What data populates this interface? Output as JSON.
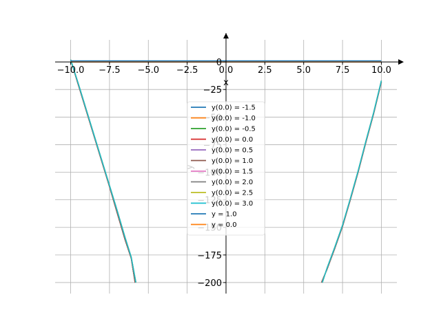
{
  "chart_data": {
    "type": "line",
    "title": "",
    "xlabel": "x",
    "ylabel": "y",
    "xlim": [
      -11,
      11
    ],
    "ylim": [
      -210,
      20
    ],
    "x_ticks": [
      -10.0,
      -7.5,
      -5.0,
      -2.5,
      0.0,
      2.5,
      5.0,
      7.5,
      10.0
    ],
    "x_tick_labels": [
      "−10.0",
      "−7.5",
      "−5.0",
      "−2.5",
      "0.0",
      "2.5",
      "5.0",
      "7.5",
      "10.0"
    ],
    "y_ticks": [
      0,
      -25,
      -50,
      -75,
      -100,
      -125,
      -150,
      -175,
      -200
    ],
    "y_tick_labels": [
      "0",
      "−25",
      "−50",
      "−75",
      "−100",
      "−125",
      "−150",
      "−175",
      "−200"
    ],
    "grid": true,
    "legend_placement": "center",
    "series": [
      {
        "name": "y(0.0) = -1.5",
        "color": "#1f77b4",
        "left": [
          [
            -10.0,
            2
          ],
          [
            -9.5,
            -21
          ],
          [
            -9.0,
            -44
          ],
          [
            -8.5,
            -67
          ],
          [
            -8.0,
            -90
          ],
          [
            -7.5,
            -113
          ],
          [
            -7.0,
            -137
          ],
          [
            -6.5,
            -161
          ],
          [
            -6.1,
            -178
          ],
          [
            -5.85,
            -200
          ]
        ],
        "right": [
          [
            6.15,
            -200
          ],
          [
            6.5,
            -188
          ],
          [
            7.0,
            -169
          ],
          [
            7.5,
            -149
          ],
          [
            8.0,
            -125
          ],
          [
            8.5,
            -100
          ],
          [
            9.0,
            -73
          ],
          [
            9.5,
            -47
          ],
          [
            10.0,
            -18
          ]
        ]
      },
      {
        "name": "y(0.0) = -1.0",
        "color": "#ff7f0e",
        "left": [
          [
            -10.0,
            2
          ],
          [
            -9.5,
            -21
          ],
          [
            -9.0,
            -44
          ],
          [
            -8.5,
            -67
          ],
          [
            -8.0,
            -90
          ],
          [
            -7.5,
            -113
          ],
          [
            -7.0,
            -137
          ],
          [
            -6.5,
            -161
          ],
          [
            -6.1,
            -178
          ],
          [
            -5.85,
            -200
          ]
        ],
        "right": [
          [
            6.15,
            -200
          ],
          [
            6.5,
            -188
          ],
          [
            7.0,
            -169
          ],
          [
            7.5,
            -149
          ],
          [
            8.0,
            -125
          ],
          [
            8.5,
            -100
          ],
          [
            9.0,
            -73
          ],
          [
            9.5,
            -47
          ],
          [
            10.0,
            -18
          ]
        ]
      },
      {
        "name": "y(0.0) = -0.5",
        "color": "#2ca02c",
        "left": [
          [
            -10.0,
            2
          ],
          [
            -9.5,
            -21
          ],
          [
            -9.0,
            -44
          ],
          [
            -8.5,
            -67
          ],
          [
            -8.0,
            -90
          ],
          [
            -7.5,
            -113
          ],
          [
            -7.0,
            -137
          ],
          [
            -6.5,
            -161
          ],
          [
            -6.1,
            -178
          ],
          [
            -5.85,
            -200
          ]
        ],
        "right": [
          [
            6.15,
            -200
          ],
          [
            6.5,
            -188
          ],
          [
            7.0,
            -169
          ],
          [
            7.5,
            -149
          ],
          [
            8.0,
            -125
          ],
          [
            8.5,
            -100
          ],
          [
            9.0,
            -73
          ],
          [
            9.5,
            -47
          ],
          [
            10.0,
            -18
          ]
        ]
      },
      {
        "name": "y(0.0) = 0.0",
        "color": "#d62728",
        "left": [
          [
            -10.0,
            2
          ],
          [
            -9.5,
            -21
          ],
          [
            -9.0,
            -44
          ],
          [
            -8.5,
            -67
          ],
          [
            -8.0,
            -90
          ],
          [
            -7.5,
            -113
          ],
          [
            -7.0,
            -137
          ],
          [
            -6.5,
            -161
          ],
          [
            -6.1,
            -178
          ],
          [
            -5.85,
            -200
          ]
        ],
        "right": [
          [
            6.15,
            -200
          ],
          [
            6.5,
            -188
          ],
          [
            7.0,
            -169
          ],
          [
            7.5,
            -149
          ],
          [
            8.0,
            -125
          ],
          [
            8.5,
            -100
          ],
          [
            9.0,
            -73
          ],
          [
            9.5,
            -47
          ],
          [
            10.0,
            -18
          ]
        ]
      },
      {
        "name": "y(0.0) = 0.5",
        "color": "#9467bd",
        "left": [
          [
            -10.0,
            2
          ],
          [
            -9.5,
            -21
          ],
          [
            -9.0,
            -44
          ],
          [
            -8.5,
            -67
          ],
          [
            -8.0,
            -90
          ],
          [
            -7.5,
            -113
          ],
          [
            -7.0,
            -137
          ],
          [
            -6.5,
            -161
          ],
          [
            -6.1,
            -178
          ],
          [
            -5.85,
            -200
          ]
        ],
        "right": [
          [
            6.15,
            -200
          ],
          [
            6.5,
            -188
          ],
          [
            7.0,
            -169
          ],
          [
            7.5,
            -149
          ],
          [
            8.0,
            -125
          ],
          [
            8.5,
            -100
          ],
          [
            9.0,
            -73
          ],
          [
            9.5,
            -47
          ],
          [
            10.0,
            -18
          ]
        ]
      },
      {
        "name": "y(0.0) = 1.0",
        "color": "#8c564b",
        "left": [
          [
            -10.0,
            2
          ],
          [
            -9.5,
            -21
          ],
          [
            -9.0,
            -44
          ],
          [
            -8.5,
            -67
          ],
          [
            -8.0,
            -90
          ],
          [
            -7.5,
            -113
          ],
          [
            -7.0,
            -137
          ],
          [
            -6.5,
            -161
          ],
          [
            -6.1,
            -178
          ],
          [
            -5.85,
            -200
          ]
        ],
        "right": [
          [
            6.15,
            -200
          ],
          [
            6.5,
            -188
          ],
          [
            7.0,
            -169
          ],
          [
            7.5,
            -149
          ],
          [
            8.0,
            -125
          ],
          [
            8.5,
            -100
          ],
          [
            9.0,
            -73
          ],
          [
            9.5,
            -47
          ],
          [
            10.0,
            -18
          ]
        ]
      },
      {
        "name": "y(0.0) = 1.5",
        "color": "#e377c2",
        "left": [
          [
            -10.0,
            2
          ],
          [
            -9.5,
            -20
          ],
          [
            -9.0,
            -43
          ],
          [
            -8.5,
            -66
          ],
          [
            -8.0,
            -89
          ],
          [
            -7.5,
            -112
          ],
          [
            -7.0,
            -135
          ],
          [
            -6.5,
            -159
          ],
          [
            -6.1,
            -177
          ],
          [
            -5.8,
            -200
          ]
        ],
        "right": [
          [
            6.2,
            -200
          ],
          [
            6.5,
            -187
          ],
          [
            7.0,
            -168
          ],
          [
            7.5,
            -148
          ],
          [
            8.0,
            -124
          ],
          [
            8.5,
            -99
          ],
          [
            9.0,
            -72
          ],
          [
            9.5,
            -46
          ],
          [
            10.0,
            -17
          ]
        ]
      },
      {
        "name": "y(0.0) = 2.0",
        "color": "#7f7f7f",
        "left": [
          [
            -10.0,
            2
          ],
          [
            -9.5,
            -20
          ],
          [
            -9.0,
            -43
          ],
          [
            -8.5,
            -66
          ],
          [
            -8.0,
            -89
          ],
          [
            -7.5,
            -112
          ],
          [
            -7.0,
            -135
          ],
          [
            -6.5,
            -159
          ],
          [
            -6.1,
            -177
          ],
          [
            -5.8,
            -200
          ]
        ],
        "right": [
          [
            6.2,
            -200
          ],
          [
            6.5,
            -187
          ],
          [
            7.0,
            -168
          ],
          [
            7.5,
            -148
          ],
          [
            8.0,
            -124
          ],
          [
            8.5,
            -99
          ],
          [
            9.0,
            -72
          ],
          [
            9.5,
            -46
          ],
          [
            10.0,
            -17
          ]
        ]
      },
      {
        "name": "y(0.0) = 2.5",
        "color": "#bcbd22",
        "left": [
          [
            -10.0,
            2
          ],
          [
            -9.5,
            -20
          ],
          [
            -9.0,
            -43
          ],
          [
            -8.5,
            -66
          ],
          [
            -8.0,
            -89
          ],
          [
            -7.5,
            -112
          ],
          [
            -7.0,
            -135
          ],
          [
            -6.5,
            -159
          ],
          [
            -6.1,
            -177
          ],
          [
            -5.8,
            -200
          ]
        ],
        "right": [
          [
            6.2,
            -200
          ],
          [
            6.5,
            -187
          ],
          [
            7.0,
            -168
          ],
          [
            7.5,
            -148
          ],
          [
            8.0,
            -124
          ],
          [
            8.5,
            -99
          ],
          [
            9.0,
            -72
          ],
          [
            9.5,
            -46
          ],
          [
            10.0,
            -17
          ]
        ]
      },
      {
        "name": "y(0.0) = 3.0",
        "color": "#17becf",
        "left": [
          [
            -10.0,
            2
          ],
          [
            -9.5,
            -20
          ],
          [
            -9.0,
            -43
          ],
          [
            -8.5,
            -66
          ],
          [
            -8.0,
            -89
          ],
          [
            -7.5,
            -112
          ],
          [
            -7.0,
            -135
          ],
          [
            -6.5,
            -159
          ],
          [
            -6.1,
            -177
          ],
          [
            -5.8,
            -200
          ]
        ],
        "right": [
          [
            6.2,
            -200
          ],
          [
            6.5,
            -187
          ],
          [
            7.0,
            -168
          ],
          [
            7.5,
            -148
          ],
          [
            8.0,
            -124
          ],
          [
            8.5,
            -99
          ],
          [
            9.0,
            -72
          ],
          [
            9.5,
            -46
          ],
          [
            10.0,
            -17
          ]
        ]
      },
      {
        "name": "y = 1.0",
        "color": "#1f77b4",
        "constant": 1.0
      },
      {
        "name": "y = 0.0",
        "color": "#ff7f0e",
        "constant": 0.0
      }
    ]
  }
}
